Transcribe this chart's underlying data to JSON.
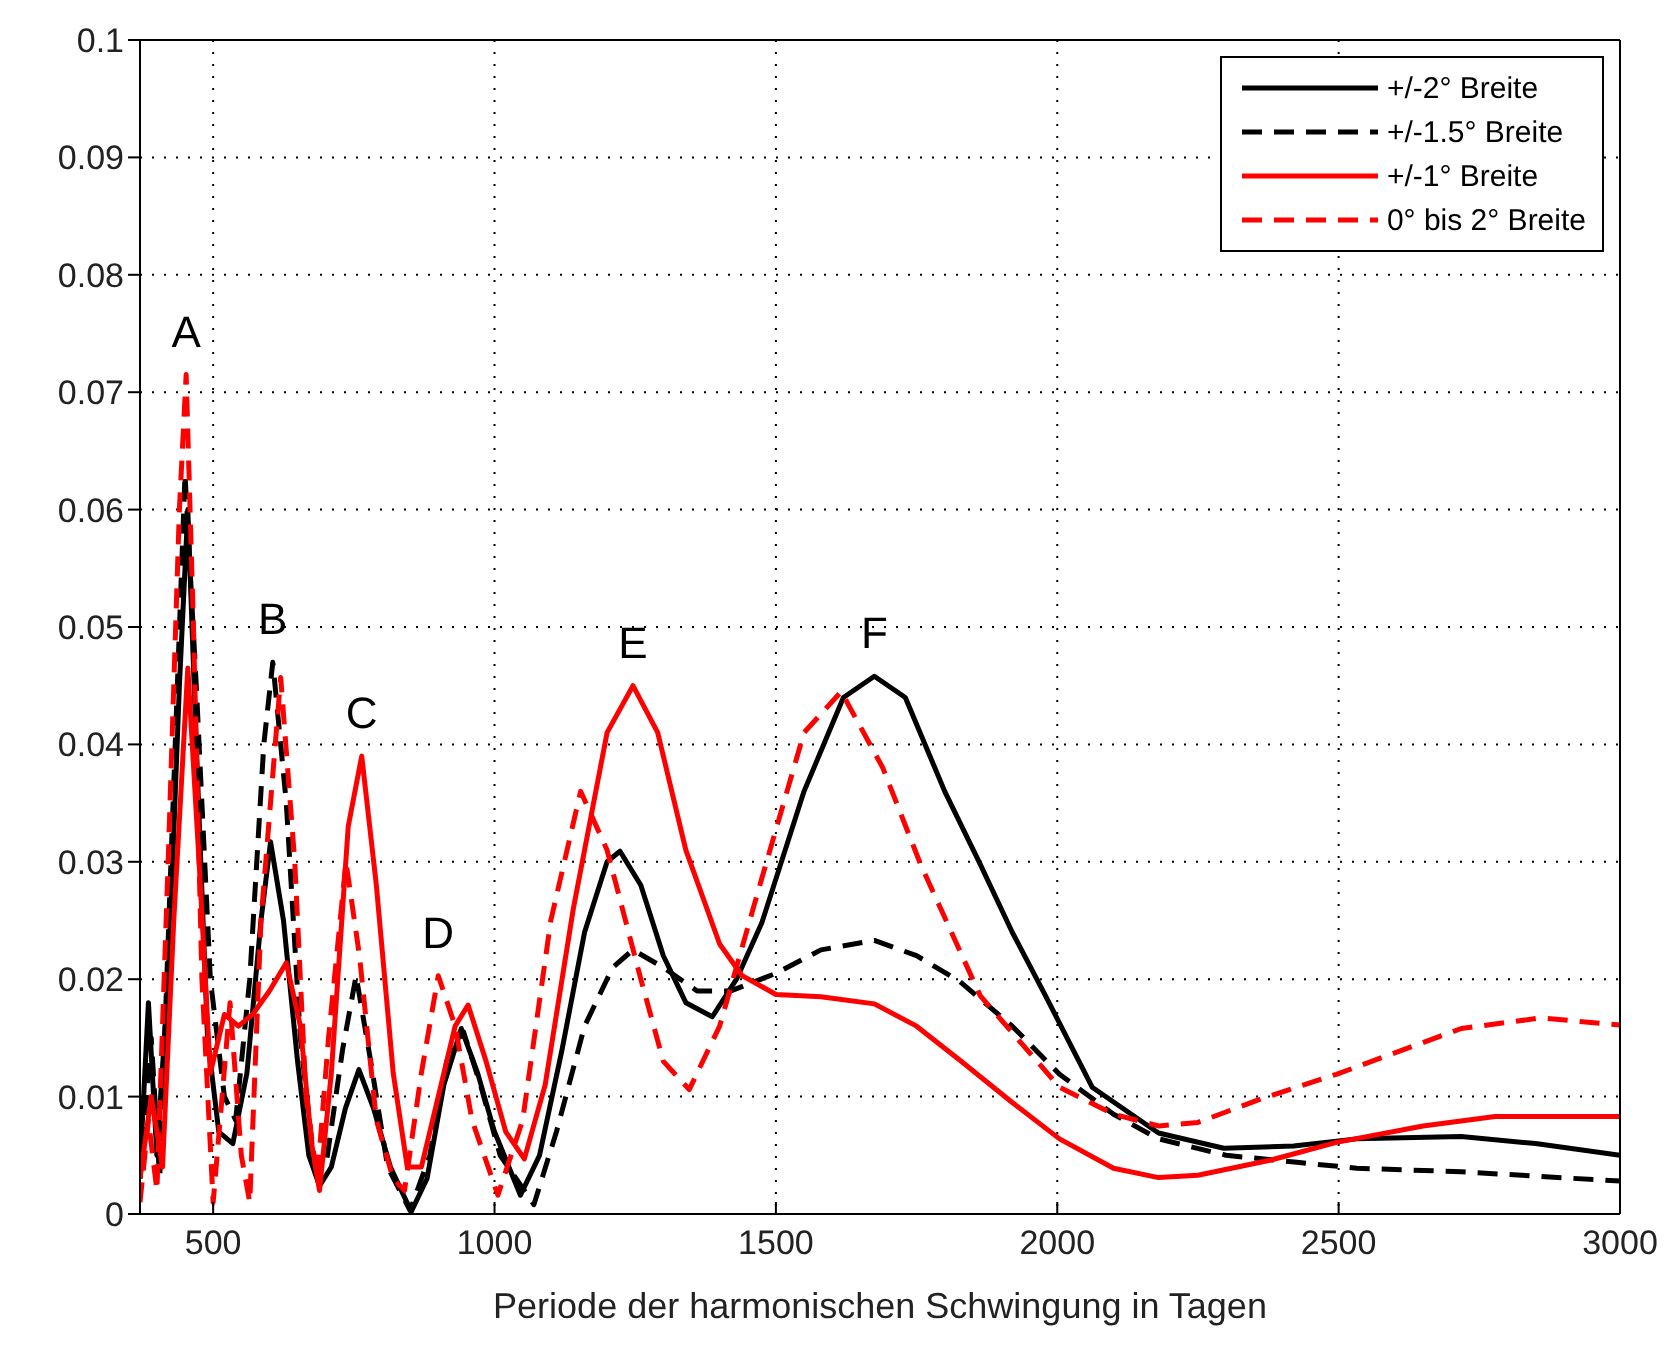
{
  "chart_data": {
    "type": "line",
    "xlabel": "Periode der harmonischen Schwingung in Tagen",
    "xlim": [
      370,
      3000
    ],
    "xticks": [
      500,
      1000,
      1500,
      2000,
      2500,
      3000
    ],
    "ylim": [
      0,
      0.1
    ],
    "yticks": [
      0,
      0.01,
      0.02,
      0.03,
      0.04,
      0.05,
      0.06,
      0.07,
      0.08,
      0.09,
      0.1
    ],
    "grid": true,
    "legend": "top right",
    "marker": "none",
    "series": [
      {
        "name": "+/-2° Breite",
        "color": "#000000",
        "line_style": "solid",
        "x": [
          370,
          385,
          400,
          420,
          440,
          455,
          470,
          490,
          510,
          535,
          560,
          585,
          602,
          625,
          650,
          670,
          689,
          710,
          735,
          759,
          785,
          815,
          852,
          880,
          910,
          941,
          970,
          1000,
          1046,
          1080,
          1120,
          1160,
          1200,
          1223,
          1260,
          1300,
          1340,
          1387,
          1430,
          1475,
          1550,
          1620,
          1675,
          1730,
          1800,
          1863,
          1920,
          1979,
          2062,
          2180,
          2296,
          2420,
          2532,
          2718,
          2850,
          3000
        ],
        "values": [
          0.004,
          0.018,
          0.005,
          0.02,
          0.045,
          0.06,
          0.04,
          0.015,
          0.007,
          0.006,
          0.012,
          0.025,
          0.0317,
          0.025,
          0.013,
          0.005,
          0.0024,
          0.004,
          0.009,
          0.0123,
          0.009,
          0.004,
          0.0002,
          0.003,
          0.011,
          0.0158,
          0.012,
          0.007,
          0.0016,
          0.005,
          0.014,
          0.024,
          0.03,
          0.0309,
          0.028,
          0.022,
          0.018,
          0.0168,
          0.02,
          0.0248,
          0.036,
          0.044,
          0.0458,
          0.044,
          0.036,
          0.0298,
          0.024,
          0.0186,
          0.0108,
          0.0069,
          0.0056,
          0.0058,
          0.0064,
          0.0066,
          0.006,
          0.005
        ]
      },
      {
        "name": "+/-1.5° Breite",
        "color": "#000000",
        "line_style": "dashed",
        "x": [
          370,
          390,
          405,
          425,
          450,
          470,
          495,
          520,
          540,
          565,
          590,
          606,
          630,
          655,
          680,
          700,
          730,
          754,
          780,
          810,
          850,
          885,
          915,
          945,
          975,
          1010,
          1070,
          1110,
          1160,
          1210,
          1246,
          1300,
          1360,
          1420,
          1500,
          1580,
          1675,
          1750,
          1827,
          1920,
          2004,
          2100,
          2180,
          2300,
          2426,
          2532,
          2718,
          3000
        ],
        "values": [
          0.003,
          0.015,
          0.003,
          0.03,
          0.063,
          0.045,
          0.02,
          0.01,
          0.008,
          0.02,
          0.04,
          0.047,
          0.035,
          0.015,
          0.004,
          0.004,
          0.014,
          0.0203,
          0.013,
          0.004,
          0.0003,
          0.005,
          0.013,
          0.0155,
          0.011,
          0.005,
          0.0008,
          0.007,
          0.016,
          0.021,
          0.0225,
          0.021,
          0.019,
          0.019,
          0.0205,
          0.0225,
          0.0233,
          0.022,
          0.0198,
          0.016,
          0.0119,
          0.0085,
          0.0064,
          0.005,
          0.0044,
          0.0039,
          0.0036,
          0.0028
        ]
      },
      {
        "name": "+/-1° Breite",
        "color": "#ff0000",
        "line_style": "solid",
        "x": [
          370,
          390,
          410,
          430,
          455,
          475,
          495,
          520,
          545,
          570,
          600,
          630,
          655,
          675,
          689,
          710,
          740,
          764,
          790,
          820,
          845,
          870,
          900,
          930,
          953,
          985,
          1020,
          1053,
          1090,
          1140,
          1200,
          1246,
          1290,
          1340,
          1400,
          1440,
          1500,
          1580,
          1675,
          1750,
          1827,
          1920,
          2004,
          2100,
          2180,
          2250,
          2380,
          2496,
          2650,
          2778,
          3000
        ],
        "values": [
          0.003,
          0.01,
          0.004,
          0.025,
          0.0465,
          0.03,
          0.012,
          0.017,
          0.016,
          0.017,
          0.019,
          0.0214,
          0.016,
          0.006,
          0.002,
          0.012,
          0.033,
          0.039,
          0.028,
          0.012,
          0.004,
          0.004,
          0.01,
          0.016,
          0.0178,
          0.013,
          0.007,
          0.0047,
          0.011,
          0.026,
          0.041,
          0.045,
          0.041,
          0.031,
          0.023,
          0.0203,
          0.0187,
          0.0185,
          0.0179,
          0.016,
          0.0131,
          0.0095,
          0.0064,
          0.0039,
          0.0031,
          0.0033,
          0.0046,
          0.0061,
          0.0075,
          0.0083,
          0.0083
        ]
      },
      {
        "name": "0° bis 2° Breite",
        "color": "#ff0000",
        "line_style": "dashed",
        "x": [
          370,
          385,
          400,
          420,
          440,
          452,
          465,
          480,
          500,
          530,
          550,
          565,
          585,
          620,
          645,
          665,
          685,
          705,
          736,
          760,
          790,
          820,
          840,
          870,
          900,
          930,
          960,
          1006,
          1050,
          1100,
          1153,
          1200,
          1260,
          1300,
          1346,
          1400,
          1475,
          1550,
          1616,
          1690,
          1757,
          1863,
          2004,
          2100,
          2180,
          2250,
          2356,
          2496,
          2718,
          2859,
          3000
        ],
        "values": [
          0.001,
          0.008,
          0.002,
          0.03,
          0.06,
          0.0715,
          0.05,
          0.02,
          0.001,
          0.018,
          0.005,
          0.001,
          0.025,
          0.0457,
          0.03,
          0.01,
          0.003,
          0.015,
          0.03,
          0.022,
          0.008,
          0.003,
          0.002,
          0.012,
          0.0203,
          0.016,
          0.008,
          0.0016,
          0.008,
          0.025,
          0.036,
          0.031,
          0.02,
          0.013,
          0.0106,
          0.016,
          0.0286,
          0.041,
          0.0445,
          0.038,
          0.0298,
          0.0186,
          0.0108,
          0.0085,
          0.0075,
          0.0078,
          0.0097,
          0.0119,
          0.0158,
          0.0167,
          0.0161
        ]
      }
    ],
    "annotations": [
      {
        "text": "A",
        "x": 452,
        "y": 0.0715
      },
      {
        "text": "B",
        "x": 606,
        "y": 0.047
      },
      {
        "text": "C",
        "x": 764,
        "y": 0.039
      },
      {
        "text": "D",
        "x": 900,
        "y": 0.0203
      },
      {
        "text": "E",
        "x": 1246,
        "y": 0.045
      },
      {
        "text": "F",
        "x": 1675,
        "y": 0.0458
      }
    ]
  }
}
